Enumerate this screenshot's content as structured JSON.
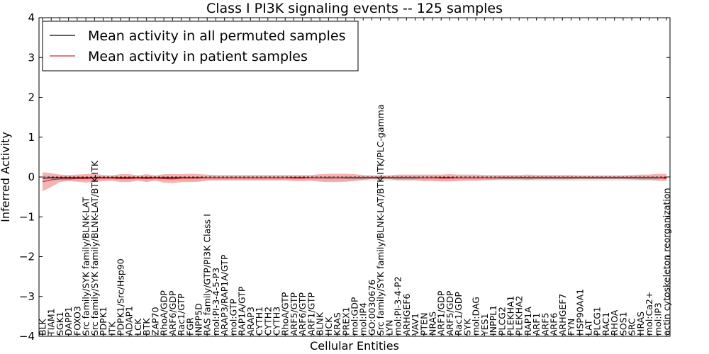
{
  "chart_data": {
    "type": "line",
    "title": "Class I PI3K signaling events -- 125 samples",
    "xlabel": "Cellular Entities",
    "ylabel": "Inferred Activity",
    "ylim": [
      -4,
      4
    ],
    "yticks": [
      4,
      3,
      2,
      1,
      0,
      -1,
      -2,
      -3,
      -4
    ],
    "ytick_labels": [
      "4",
      "3",
      "2",
      "1",
      "0",
      "−1",
      "−2",
      "−3",
      "−4"
    ],
    "legend_position": "top-left",
    "categories": [
      "BLK",
      "TIAM1",
      "SGK1",
      "DAPP1",
      "FOXO3",
      "Src family/SYK family/BLNK-LAT",
      "Src family/SYK family/BLNK-LAT/BTK-ITK",
      "PDPK1",
      "ITK",
      "PDPK1/Src/Hsp90",
      "ADAP1",
      "LCK",
      "BTK",
      "ZAP70",
      "RhoA/GDP",
      "ARF6/GDP",
      "Rac1/GTP",
      "FGR",
      "INPP5D",
      "RAS family/GTP/PI3K Class I",
      "mol:PI-3-4-5-P3",
      "ARAP3/RAP1A/GTP",
      "mol:GTP",
      "RAP1A/GTP",
      "ARAP3",
      "CYTH1",
      "CYTH2",
      "CYTH3",
      "RhoA/GTP",
      "ARF5/GTP",
      "ARF6/GTP",
      "ARF1/GTP",
      "BLNK",
      "HCK",
      "KRAS",
      "PREX1",
      "mol:GDP",
      "mol:IP4",
      "GO:0030676",
      "Src family/SYK family/BLNK-LAT/BTK-ITK/PLC-gamma",
      "LYN",
      "mol:PI-3-4-P2",
      "ARHGEF6",
      "VAV1",
      "PTEN",
      "NRAS",
      "ARF1/GDP",
      "ARF5/GDP",
      "Rac1/GDP",
      "SYK",
      "mol:DAG",
      "YES1",
      "INPPL1",
      "PLCG2",
      "PLEKHA1",
      "PLEKHA2",
      "RAP1A",
      "ARF1",
      "ARF5",
      "ARF6",
      "ARHGEF7",
      "FYN",
      "HSP90AA1",
      "LAT",
      "PLCG1",
      "RAC1",
      "RHOA",
      "SOS1",
      "SRC",
      "HRAS",
      "mol:Ca2+",
      "mol:IP3",
      "actin cytoskeleton reorganization"
    ],
    "series": [
      {
        "name": "Mean activity in all permuted samples",
        "color": "#000000",
        "values": [
          -0.03,
          -0.02,
          -0.02,
          -0.02,
          -0.02,
          -0.02,
          -0.02,
          -0.02,
          -0.02,
          -0.02,
          -0.02,
          -0.02,
          -0.02,
          -0.02,
          -0.02,
          -0.02,
          -0.02,
          -0.02,
          -0.02,
          -0.02,
          -0.02,
          -0.02,
          -0.02,
          -0.02,
          -0.02,
          -0.02,
          -0.02,
          -0.02,
          -0.02,
          -0.02,
          -0.02,
          -0.02,
          -0.02,
          -0.02,
          -0.02,
          -0.02,
          -0.02,
          -0.02,
          -0.02,
          -0.02,
          -0.02,
          -0.02,
          -0.02,
          -0.02,
          -0.02,
          -0.02,
          -0.02,
          -0.02,
          -0.02,
          -0.02,
          -0.02,
          -0.02,
          -0.02,
          -0.02,
          -0.02,
          -0.02,
          -0.02,
          -0.02,
          -0.02,
          -0.02,
          -0.02,
          -0.02,
          -0.02,
          -0.02,
          -0.02,
          -0.02,
          -0.02,
          -0.02,
          -0.02,
          -0.02,
          -0.02,
          -0.02,
          -0.02
        ],
        "band_upper": [
          0.03,
          0.03,
          0.03,
          0.03,
          0.03,
          0.03,
          0.03,
          0.03,
          0.03,
          0.03,
          0.03,
          0.03,
          0.03,
          0.03,
          0.03,
          0.03,
          0.03,
          0.03,
          0.03,
          0.03,
          0.03,
          0.03,
          0.03,
          0.03,
          0.03,
          0.03,
          0.03,
          0.03,
          0.03,
          0.03,
          0.03,
          0.03,
          0.03,
          0.03,
          0.03,
          0.03,
          0.03,
          0.03,
          0.03,
          0.03,
          0.03,
          0.03,
          0.03,
          0.03,
          0.03,
          0.03,
          0.03,
          0.03,
          0.03,
          0.03,
          0.03,
          0.03,
          0.03,
          0.03,
          0.03,
          0.03,
          0.03,
          0.03,
          0.03,
          0.03,
          0.03,
          0.03,
          0.03,
          0.03,
          0.03,
          0.03,
          0.03,
          0.03,
          0.03,
          0.03,
          0.03,
          0.03,
          0.03
        ],
        "band_lower": [
          -0.1,
          -0.09,
          -0.09,
          -0.09,
          -0.09,
          -0.09,
          -0.09,
          -0.09,
          -0.09,
          -0.09,
          -0.09,
          -0.09,
          -0.09,
          -0.09,
          -0.09,
          -0.09,
          -0.09,
          -0.09,
          -0.09,
          -0.09,
          -0.09,
          -0.09,
          -0.09,
          -0.09,
          -0.09,
          -0.09,
          -0.09,
          -0.09,
          -0.09,
          -0.09,
          -0.09,
          -0.09,
          -0.09,
          -0.09,
          -0.09,
          -0.09,
          -0.09,
          -0.09,
          -0.09,
          -0.09,
          -0.09,
          -0.09,
          -0.09,
          -0.09,
          -0.09,
          -0.09,
          -0.09,
          -0.09,
          -0.09,
          -0.09,
          -0.09,
          -0.09,
          -0.09,
          -0.09,
          -0.09,
          -0.09,
          -0.09,
          -0.09,
          -0.09,
          -0.09,
          -0.09,
          -0.09,
          -0.09,
          -0.09,
          -0.09,
          -0.09,
          -0.09,
          -0.09,
          -0.09,
          -0.09,
          -0.09,
          -0.09,
          -0.09
        ]
      },
      {
        "name": "Mean activity in patient samples",
        "color": "#d62728",
        "values": [
          -0.12,
          -0.07,
          -0.05,
          -0.05,
          -0.04,
          -0.04,
          -0.03,
          -0.03,
          -0.03,
          -0.04,
          -0.04,
          -0.03,
          -0.04,
          -0.03,
          -0.04,
          -0.05,
          -0.03,
          -0.03,
          -0.03,
          -0.02,
          -0.02,
          -0.02,
          -0.02,
          -0.02,
          -0.02,
          -0.02,
          -0.02,
          -0.02,
          -0.02,
          -0.03,
          -0.03,
          -0.02,
          -0.02,
          -0.01,
          -0.02,
          -0.01,
          -0.01,
          -0.01,
          -0.01,
          -0.01,
          -0.01,
          -0.01,
          -0.01,
          -0.01,
          -0.02,
          -0.02,
          -0.03,
          -0.03,
          -0.02,
          -0.02,
          -0.02,
          -0.02,
          -0.02,
          -0.01,
          -0.01,
          -0.01,
          -0.01,
          -0.01,
          -0.01,
          -0.01,
          -0.01,
          -0.01,
          -0.01,
          -0.01,
          -0.01,
          -0.01,
          -0.01,
          -0.01,
          -0.01,
          -0.01,
          -0.01,
          -0.01,
          -0.04
        ],
        "band_upper": [
          0.12,
          0.1,
          0.06,
          0.05,
          0.06,
          0.07,
          0.08,
          0.05,
          0.04,
          0.07,
          0.07,
          0.04,
          0.07,
          0.04,
          0.07,
          0.07,
          0.07,
          0.08,
          0.07,
          0.06,
          0.05,
          0.05,
          0.05,
          0.05,
          0.05,
          0.05,
          0.05,
          0.05,
          0.05,
          0.05,
          0.05,
          0.05,
          0.07,
          0.08,
          0.08,
          0.08,
          0.07,
          0.05,
          0.04,
          0.04,
          0.04,
          0.06,
          0.06,
          0.06,
          0.06,
          0.06,
          0.06,
          0.07,
          0.06,
          0.06,
          0.06,
          0.05,
          0.05,
          0.05,
          0.05,
          0.05,
          0.06,
          0.05,
          0.05,
          0.05,
          0.05,
          0.05,
          0.04,
          0.04,
          0.04,
          0.04,
          0.04,
          0.04,
          0.05,
          0.06,
          0.06,
          0.08,
          0.08
        ],
        "band_lower": [
          -0.36,
          -0.25,
          -0.13,
          -0.1,
          -0.12,
          -0.14,
          -0.13,
          -0.1,
          -0.09,
          -0.13,
          -0.13,
          -0.09,
          -0.13,
          -0.09,
          -0.14,
          -0.15,
          -0.13,
          -0.13,
          -0.12,
          -0.09,
          -0.08,
          -0.08,
          -0.08,
          -0.08,
          -0.08,
          -0.08,
          -0.08,
          -0.08,
          -0.08,
          -0.1,
          -0.1,
          -0.09,
          -0.12,
          -0.13,
          -0.13,
          -0.12,
          -0.1,
          -0.07,
          -0.05,
          -0.05,
          -0.05,
          -0.08,
          -0.08,
          -0.08,
          -0.1,
          -0.1,
          -0.11,
          -0.11,
          -0.1,
          -0.09,
          -0.09,
          -0.08,
          -0.07,
          -0.06,
          -0.06,
          -0.06,
          -0.07,
          -0.06,
          -0.06,
          -0.06,
          -0.06,
          -0.06,
          -0.05,
          -0.05,
          -0.05,
          -0.05,
          -0.05,
          -0.05,
          -0.06,
          -0.07,
          -0.07,
          -0.09,
          -0.1
        ]
      }
    ],
    "zero_line_style": "dashed",
    "colors": {
      "permuted_band": "#cccccc",
      "patient_band": "#f08080",
      "frame": "#000000"
    }
  }
}
